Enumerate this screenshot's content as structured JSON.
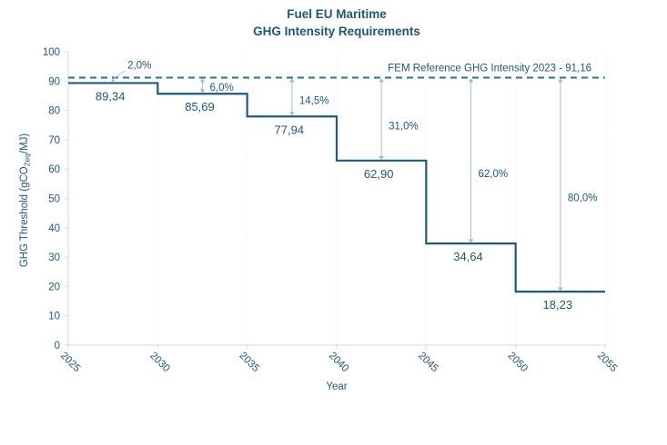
{
  "title": {
    "line1": "Fuel EU Maritime",
    "line2": "GHG Intensity Requirements"
  },
  "chart_data": {
    "type": "line",
    "subtype": "step",
    "title": "Fuel EU Maritime",
    "subtitle": "GHG Intensity Requirements",
    "xlabel": "Year",
    "ylabel": "GHG Threshold (gCO2eq/MJ)",
    "ylabel_parts": {
      "prefix": "GHG Threshold (gCO",
      "sub": "2eq",
      "suffix": "/MJ)"
    },
    "xlim": [
      2025,
      2055
    ],
    "ylim": [
      0,
      100
    ],
    "x_ticks": [
      "2025",
      "2030",
      "2035",
      "2040",
      "2045",
      "2050",
      "2055"
    ],
    "y_ticks": [
      "0",
      "10",
      "20",
      "30",
      "40",
      "50",
      "60",
      "70",
      "80",
      "90",
      "100"
    ],
    "grid": "vertical-dotted",
    "legend": false,
    "reference_line": {
      "value": 91.16,
      "label": "FEM Reference GHG Intensity 2023 - 91,16"
    },
    "series": [
      {
        "name": "GHG Threshold",
        "steps": [
          {
            "x_start": 2025,
            "x_end": 2030,
            "y": 89.34,
            "label": "89,34",
            "reduction": "2,0%"
          },
          {
            "x_start": 2030,
            "x_end": 2035,
            "y": 85.69,
            "label": "85,69",
            "reduction": "6,0%"
          },
          {
            "x_start": 2035,
            "x_end": 2040,
            "y": 77.94,
            "label": "77,94",
            "reduction": "14,5%"
          },
          {
            "x_start": 2040,
            "x_end": 2045,
            "y": 62.9,
            "label": "62,90",
            "reduction": "31,0%"
          },
          {
            "x_start": 2045,
            "x_end": 2050,
            "y": 34.64,
            "label": "34,64",
            "reduction": "62,0%"
          },
          {
            "x_start": 2050,
            "x_end": 2055,
            "y": 18.23,
            "label": "18,23",
            "reduction": "80,0%"
          }
        ]
      }
    ]
  },
  "colors": {
    "text": "#1d5876",
    "line": "#1e5c7d",
    "reference": "#26719b",
    "arrow": "#aec6d5",
    "arrow_head": "#9db9cb",
    "grid": "#e3e9ee",
    "axis": "#d9d9d9",
    "background": "#ffffff"
  }
}
